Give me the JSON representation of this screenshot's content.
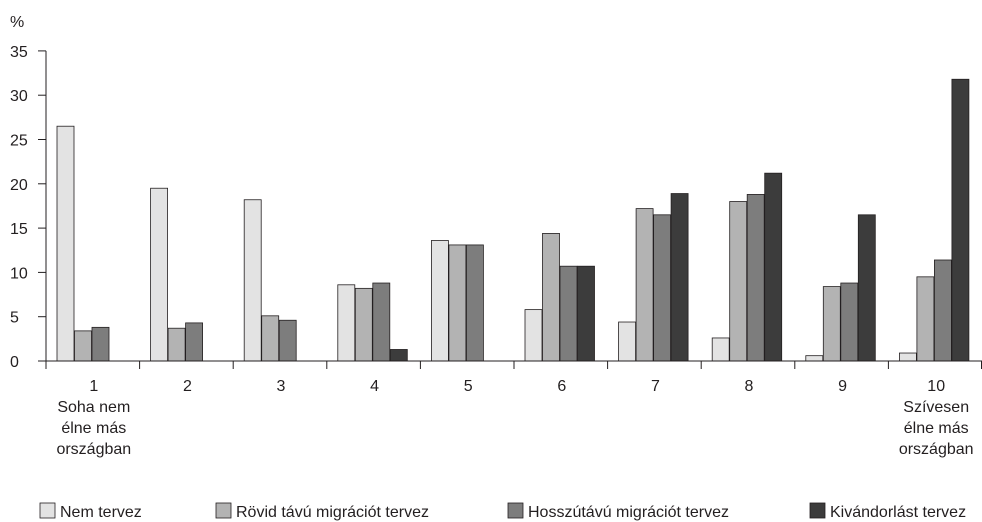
{
  "chart_data": {
    "type": "bar",
    "ylabel": "%",
    "ylim": [
      0,
      35
    ],
    "yticks": [
      0,
      5,
      10,
      15,
      20,
      25,
      30,
      35
    ],
    "grid": false,
    "legend_position": "bottom",
    "categories": [
      [
        "1",
        "Soha nem",
        "élne más",
        "országban"
      ],
      [
        "2"
      ],
      [
        "3"
      ],
      [
        "4"
      ],
      [
        "5"
      ],
      [
        "6"
      ],
      [
        "7"
      ],
      [
        "8"
      ],
      [
        "9"
      ],
      [
        "10",
        "Szívesen",
        "élne más",
        "országban"
      ]
    ],
    "series": [
      {
        "name": "Nem tervez",
        "color": "#e3e3e3",
        "values": [
          26.5,
          19.5,
          18.2,
          8.6,
          13.6,
          5.8,
          4.4,
          2.6,
          0.6,
          0.9
        ]
      },
      {
        "name": "Rövid távú migrációt tervez",
        "color": "#b3b3b3",
        "values": [
          3.4,
          3.7,
          5.1,
          8.2,
          13.1,
          14.4,
          17.2,
          18.0,
          8.4,
          9.5
        ]
      },
      {
        "name": "Hosszútávú migrációt tervez",
        "color": "#7d7d7d",
        "values": [
          3.8,
          4.3,
          4.6,
          8.8,
          13.1,
          10.7,
          16.5,
          18.8,
          8.8,
          11.4
        ]
      },
      {
        "name": "Kivándorlást tervez",
        "color": "#3c3c3c",
        "values": [
          0,
          0,
          0,
          1.3,
          0,
          10.7,
          18.9,
          21.2,
          16.5,
          31.8
        ]
      }
    ]
  }
}
